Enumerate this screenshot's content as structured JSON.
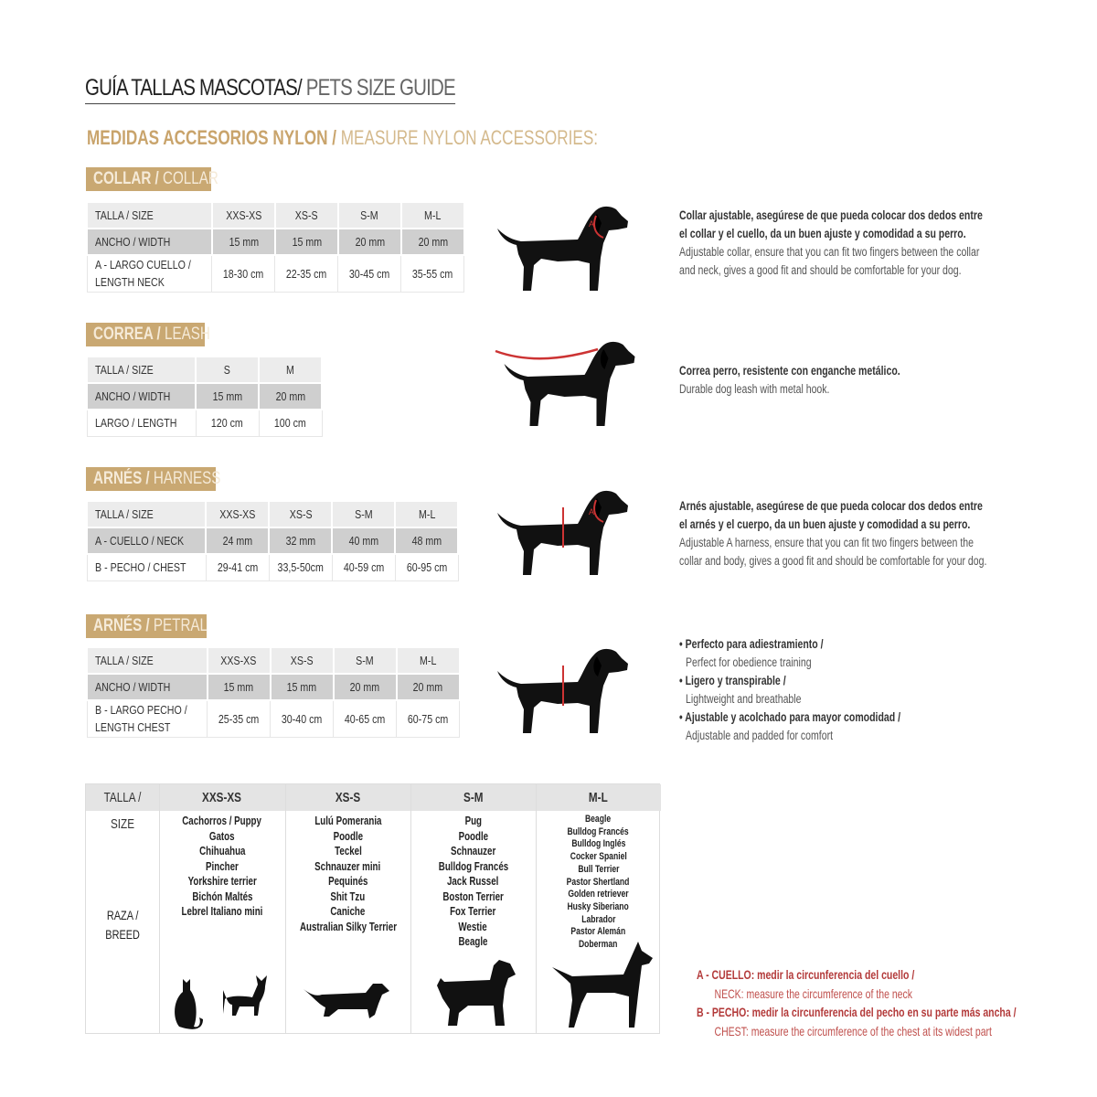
{
  "title": {
    "es": "GUÍA TALLAS MASCOTAS/",
    "en": " PETS SIZE GUIDE"
  },
  "subtitle": {
    "es": "MEDIDAS ACCESORIOS NYLON /",
    "en": " MEASURE NYLON ACCESSORIES:"
  },
  "colors": {
    "gold": "#c9a872",
    "red": "#b33a3a",
    "row_gray": "#cfcfcf"
  },
  "sections": [
    {
      "tag_es": "COLLAR /",
      "tag_en": " COLLAR",
      "rows": [
        [
          "TALLA / SIZE",
          "XXS-XS",
          "XS-S",
          "S-M",
          "M-L"
        ],
        [
          "ANCHO / WIDTH",
          "15 mm",
          "15 mm",
          "20 mm",
          "20 mm"
        ],
        [
          "A - LARGO CUELLO / LENGTH NECK",
          "18-30 cm",
          "22-35 cm",
          "30-45 cm",
          "35-55 cm"
        ]
      ],
      "desc": [
        "Collar ajustable, asegúrese de que pueda colocar dos dedos entre",
        "el collar y el cuello, da un buen ajuste y comodidad a su perro.",
        "Adjustable collar, ensure that you can fit two fingers between the collar",
        "and neck, gives a good fit and should be comfortable for your dog."
      ],
      "marker": "A"
    },
    {
      "tag_es": "CORREA /",
      "tag_en": " LEASH",
      "rows": [
        [
          "TALLA / SIZE",
          "S",
          "M"
        ],
        [
          "ANCHO / WIDTH",
          "15 mm",
          "20 mm"
        ],
        [
          "LARGO / LENGTH",
          "120 cm",
          "100 cm"
        ]
      ],
      "desc": [
        "Correa perro, resistente con enganche metálico.",
        "Durable dog leash with metal hook."
      ]
    },
    {
      "tag_es": "ARNÉS /",
      "tag_en": " HARNESS",
      "rows": [
        [
          "TALLA / SIZE",
          "XXS-XS",
          "XS-S",
          "S-M",
          "M-L"
        ],
        [
          "A - CUELLO / NECK",
          "24 mm",
          "32 mm",
          "40 mm",
          "48 mm"
        ],
        [
          "B - PECHO / CHEST",
          "29-41 cm",
          "33,5-50cm",
          "40-59 cm",
          "60-95 cm"
        ]
      ],
      "desc": [
        "Arnés ajustable, asegúrese de que pueda colocar dos dedos entre",
        "el arnés y el cuerpo, da un buen ajuste y comodidad a su perro.",
        "Adjustable A harness, ensure that you can fit two fingers between the",
        "collar and body, gives a good fit and should be comfortable for your dog."
      ],
      "marker": "A"
    },
    {
      "tag_es": "ARNÉS /",
      "tag_en": " PETRAL",
      "rows": [
        [
          "TALLA / SIZE",
          "XXS-XS",
          "XS-S",
          "S-M",
          "M-L"
        ],
        [
          "ANCHO / WIDTH",
          "15 mm",
          "15 mm",
          "20 mm",
          "20 mm"
        ],
        [
          "B - LARGO PECHO / LENGTH CHEST",
          "25-35 cm",
          "30-40 cm",
          "40-65 cm",
          "60-75 cm"
        ]
      ],
      "desc": [
        "• Perfecto para adiestramiento /",
        "Perfect for obedience training",
        "• Ligero y transpirable /",
        "Lightweight and breathable",
        "• Ajustable y acolchado para mayor comodidad /",
        "Adjustable and padded for comfort"
      ]
    }
  ],
  "breed_table": {
    "size_label": "TALLA /  SIZE",
    "breed_label": [
      "RAZA /",
      "BREED"
    ],
    "columns": [
      {
        "size": "XXS-XS",
        "breeds": [
          "Cachorros / Puppy",
          "Gatos",
          "Chihuahua",
          "Pincher",
          "Yorkshire terrier",
          "Bichón Maltés",
          "Lebrel Italiano mini"
        ]
      },
      {
        "size": "XS-S",
        "breeds": [
          "Lulú Pomerania",
          "Poodle",
          "Teckel",
          "Schnauzer mini",
          "Pequinés",
          "Shit Tzu",
          "Caniche",
          "Australian Silky Terrier"
        ]
      },
      {
        "size": "S-M",
        "breeds": [
          "Pug",
          "Poodle",
          "Schnauzer",
          "Bulldog Francés",
          "Jack Russel",
          "Boston Terrier",
          "Fox Terrier",
          "Westie",
          "Beagle"
        ]
      },
      {
        "size": "M-L",
        "breeds": [
          "Beagle",
          "Bulldog Francés",
          "Bulldog Inglés",
          "Cocker Spaniel",
          "Bull Terrier",
          "Pastor Shertland",
          "Golden retriever",
          "Husky Siberiano",
          "Labrador",
          "Pastor Alemán",
          "Doberman"
        ]
      }
    ]
  },
  "notes": [
    {
      "es": "A - CUELLO: medir la circunferencia del cuello /",
      "en": "NECK: measure the circumference of the neck"
    },
    {
      "es": "B - PECHO: medir la circunferencia del pecho en su parte más ancha /",
      "en": "CHEST: measure the circumference of the chest at its widest part"
    }
  ]
}
